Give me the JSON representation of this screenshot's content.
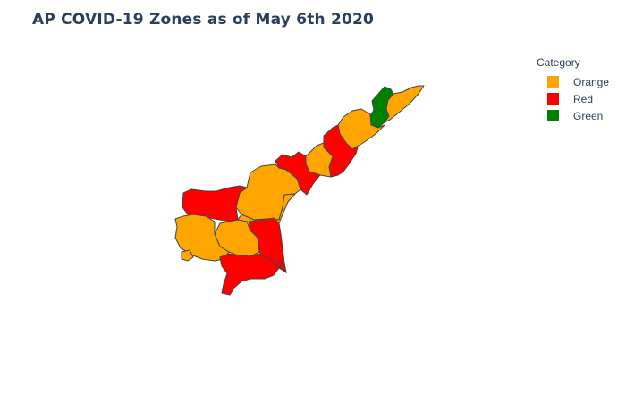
{
  "title": "AP COVID-19 Zones as of May 6th 2020",
  "legend": {
    "title": "Category",
    "items": [
      {
        "label": "Orange",
        "color": "#FFA500"
      },
      {
        "label": "Red",
        "color": "#FF0000"
      },
      {
        "label": "Green",
        "color": "#008000"
      }
    ]
  },
  "districts": [
    {
      "category": "Green"
    },
    {
      "category": "Orange"
    },
    {
      "category": "Orange"
    },
    {
      "category": "Red"
    },
    {
      "category": "Orange"
    },
    {
      "category": "Red"
    },
    {
      "category": "Orange"
    },
    {
      "category": "Red"
    },
    {
      "category": "Orange"
    },
    {
      "category": "Red"
    },
    {
      "category": "Orange"
    },
    {
      "category": "Orange"
    },
    {
      "category": "Red"
    }
  ],
  "colors": {
    "Orange": "#FFA500",
    "Red": "#FF0000",
    "Green": "#008000",
    "border": "#444444"
  }
}
